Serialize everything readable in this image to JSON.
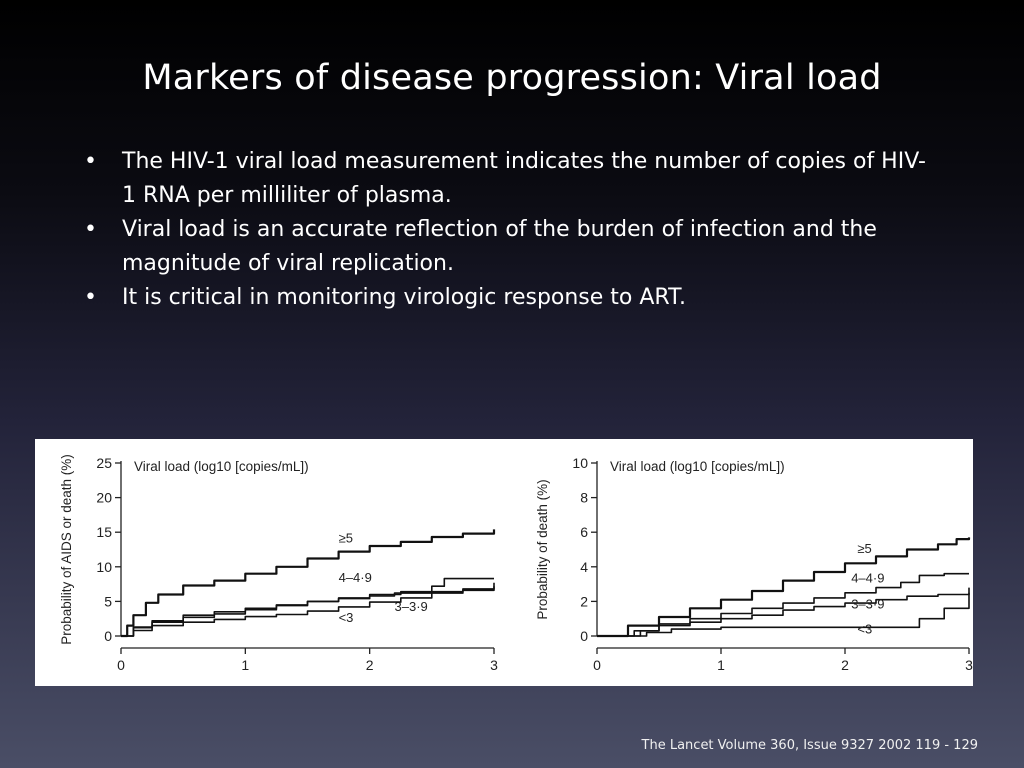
{
  "slide": {
    "title": "Markers of disease progression: Viral load",
    "bullets": [
      "The HIV-1 viral load measurement indicates the number of copies of HIV-1 RNA per milliliter of plasma.",
      "Viral load is an accurate reflection of the burden of infection and the magnitude of viral replication.",
      "It is critical in monitoring virologic response to ART."
    ],
    "bullet_marker": "•",
    "citation": "The Lancet Volume 360, Issue 9327 2002 119 - 129"
  },
  "chart_data": [
    {
      "type": "line",
      "title": "Viral load (log10 [copies/mL])",
      "ylabel": "Probability of AIDS or death (%)",
      "xlabel": "",
      "xlim": [
        0,
        3
      ],
      "ylim": [
        0,
        25
      ],
      "xticks": [
        0,
        1,
        2,
        3
      ],
      "yticks": [
        0,
        5,
        10,
        15,
        20,
        25
      ],
      "grid": false,
      "series": [
        {
          "name": "≥5",
          "x": [
            0,
            0.05,
            0.1,
            0.2,
            0.3,
            0.5,
            0.75,
            1.0,
            1.25,
            1.5,
            1.75,
            2.0,
            2.25,
            2.5,
            2.75,
            3.0
          ],
          "y": [
            0,
            1.5,
            3,
            4.8,
            6,
            7.3,
            8,
            9,
            10,
            11.2,
            12.2,
            13,
            13.6,
            14.3,
            14.8,
            15.4
          ]
        },
        {
          "name": "4–4·9",
          "x": [
            0,
            0.1,
            0.25,
            0.5,
            0.75,
            1.0,
            1.25,
            1.5,
            1.75,
            2.0,
            2.25,
            2.5,
            2.6,
            3.0
          ],
          "y": [
            0,
            1.2,
            2,
            2.7,
            3.2,
            3.8,
            4.4,
            5,
            5.5,
            6,
            6.4,
            7.2,
            8.3,
            8.3
          ]
        },
        {
          "name": "3–3·9",
          "x": [
            0,
            0.1,
            0.25,
            0.5,
            0.75,
            1.0,
            1.25,
            1.5,
            1.75,
            2.0,
            2.2,
            2.5,
            2.75,
            3.0
          ],
          "y": [
            0,
            1.3,
            2.2,
            3,
            3.5,
            4,
            4.5,
            5,
            5.4,
            5.8,
            6.2,
            6.4,
            6.6,
            7.7
          ]
        },
        {
          "name": "<3",
          "x": [
            0,
            0.1,
            0.25,
            0.5,
            0.75,
            1.0,
            1.25,
            1.5,
            1.75,
            2.0,
            2.25,
            2.5,
            2.75,
            3.0
          ],
          "y": [
            0,
            0.8,
            1.5,
            2,
            2.4,
            2.8,
            3.1,
            3.6,
            4.2,
            4.9,
            5.5,
            6.2,
            6.8,
            7.2
          ]
        }
      ],
      "label_positions": {
        "≥5": [
          1.75,
          13.5
        ],
        "4–4·9": [
          1.75,
          7.8
        ],
        "3–3·9": [
          2.2,
          3.6
        ],
        "<3": [
          1.75,
          2.0
        ]
      }
    },
    {
      "type": "line",
      "title": "Viral load (log10 [copies/mL])",
      "ylabel": "Probability of death (%)",
      "xlabel": "",
      "xlim": [
        0,
        3
      ],
      "ylim": [
        0,
        10
      ],
      "xticks": [
        0,
        1,
        2,
        3
      ],
      "yticks": [
        0,
        2,
        4,
        6,
        8,
        10
      ],
      "grid": false,
      "series": [
        {
          "name": "≥5",
          "x": [
            0,
            0.25,
            0.5,
            0.75,
            1.0,
            1.25,
            1.5,
            1.75,
            2.0,
            2.25,
            2.5,
            2.75,
            2.9,
            3.0
          ],
          "y": [
            0,
            0.6,
            1.1,
            1.6,
            2.1,
            2.6,
            3.2,
            3.7,
            4.2,
            4.6,
            5.0,
            5.3,
            5.6,
            5.7
          ]
        },
        {
          "name": "4–4·9",
          "x": [
            0,
            0.3,
            0.5,
            0.75,
            1.0,
            1.25,
            1.5,
            1.75,
            2.0,
            2.25,
            2.45,
            2.6,
            2.8,
            3.0
          ],
          "y": [
            0,
            0.3,
            0.7,
            1.0,
            1.3,
            1.6,
            1.9,
            2.2,
            2.5,
            2.8,
            3.1,
            3.5,
            3.6,
            3.6
          ]
        },
        {
          "name": "3–3·9",
          "x": [
            0,
            0.35,
            0.5,
            0.75,
            1.0,
            1.25,
            1.5,
            1.75,
            2.0,
            2.25,
            2.5,
            2.75,
            3.0
          ],
          "y": [
            0,
            0.3,
            0.6,
            0.8,
            1.0,
            1.2,
            1.5,
            1.7,
            1.9,
            2.1,
            2.3,
            2.4,
            2.5
          ]
        },
        {
          "name": "<3",
          "x": [
            0,
            0.4,
            0.6,
            1.0,
            1.5,
            2.0,
            2.4,
            2.6,
            2.8,
            3.0
          ],
          "y": [
            0,
            0.2,
            0.4,
            0.5,
            0.5,
            0.5,
            0.5,
            1.0,
            1.6,
            2.8
          ]
        }
      ],
      "label_positions": {
        "≥5": [
          2.1,
          4.8
        ],
        "4–4·9": [
          2.05,
          3.1
        ],
        "3–3·9": [
          2.05,
          1.6
        ],
        "<3": [
          2.1,
          0.15
        ]
      }
    }
  ]
}
